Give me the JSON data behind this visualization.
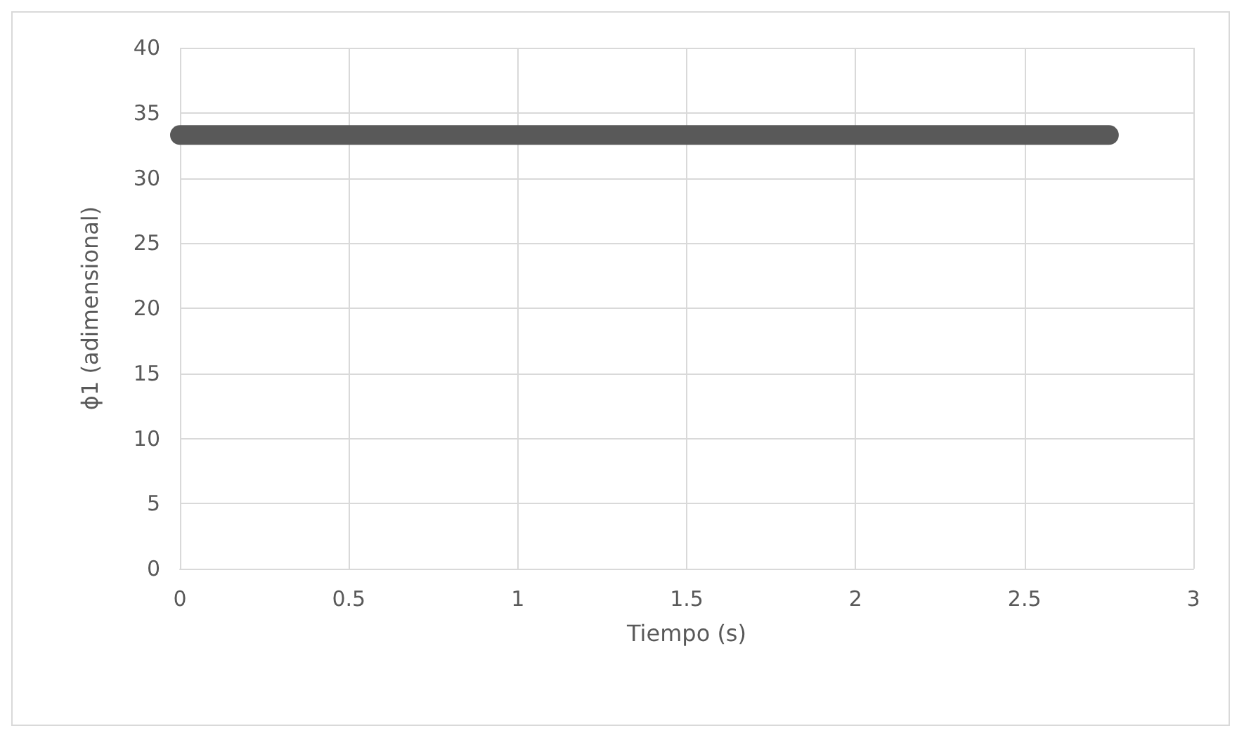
{
  "chart_data": {
    "type": "line",
    "xlabel": "Tiempo (s)",
    "ylabel": "ϕ1 (adimensional)",
    "x": [
      0,
      2.75
    ],
    "series": [
      {
        "color": "#595959",
        "values": [
          33.3,
          33.3
        ]
      }
    ],
    "xlim": [
      0,
      3
    ],
    "xticks": [
      0,
      0.5,
      1,
      1.5,
      2,
      2.5,
      3
    ],
    "ylim": [
      0,
      40
    ],
    "yticks": [
      0,
      5,
      10,
      15,
      20,
      25,
      30,
      35,
      40
    ],
    "grid": true,
    "line_style": "solid"
  }
}
